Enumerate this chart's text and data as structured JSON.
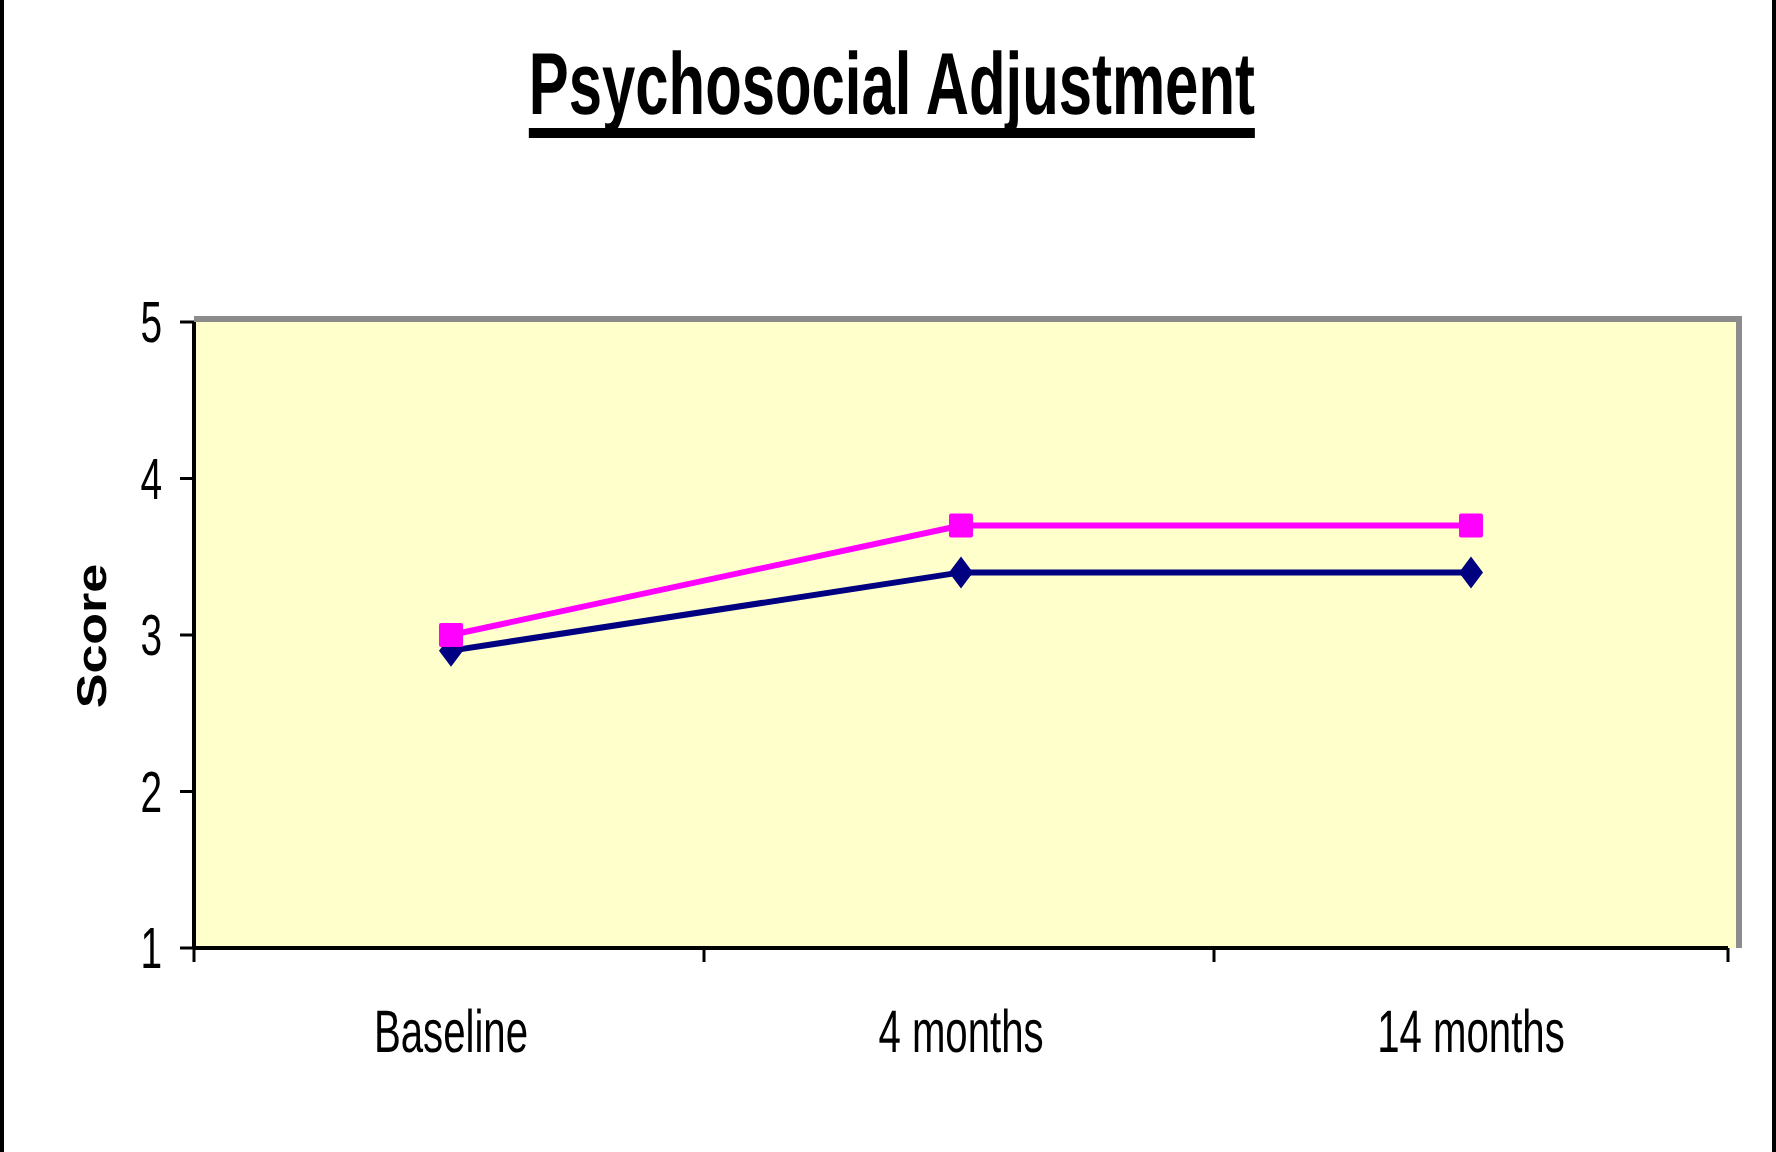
{
  "chart_data": {
    "type": "line",
    "title": "Psychosocial Adjustment",
    "ylabel": "Score",
    "categories": [
      "Baseline",
      "4 months",
      "14 months"
    ],
    "series": [
      {
        "color": "#000080",
        "marker": "diamond",
        "values": [
          2.9,
          3.4,
          3.4
        ]
      },
      {
        "color": "#ff00ff",
        "marker": "square",
        "values": [
          3.0,
          3.7,
          3.7
        ]
      }
    ],
    "ylim": [
      1,
      5
    ],
    "yticks": [
      1,
      2,
      3,
      4,
      5
    ],
    "line_style": "solid"
  }
}
